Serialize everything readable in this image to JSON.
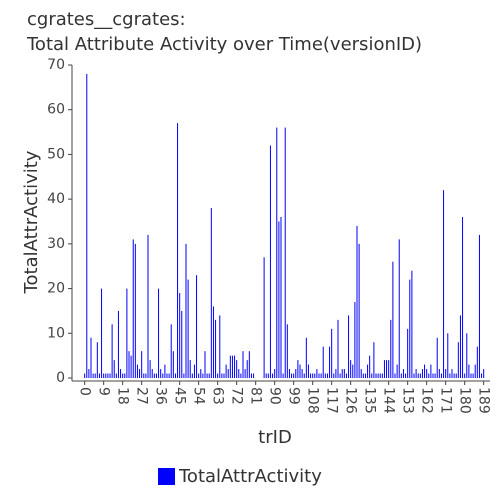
{
  "chart_data": {
    "type": "bar",
    "title_lines": [
      "cgrates__cgrates:",
      "Total Attribute Activity over Time(versionID)"
    ],
    "x_label": "trID",
    "y_label": "TotalAttrActivity",
    "series": [
      {
        "name": "TotalAttrActivity",
        "color": "#0000ff",
        "values": [
          1,
          68,
          2,
          9,
          1,
          1,
          8,
          1,
          20,
          1,
          1,
          1,
          1,
          12,
          4,
          1,
          15,
          2,
          1,
          1,
          20,
          6,
          5,
          31,
          30,
          3,
          2,
          6,
          1,
          1,
          32,
          4,
          2,
          1,
          1,
          20,
          2,
          1,
          3,
          1,
          1,
          12,
          6,
          1,
          57,
          19,
          15,
          1,
          30,
          22,
          4,
          1,
          3,
          23,
          1,
          2,
          1,
          6,
          1,
          1,
          38,
          16,
          13,
          1,
          14,
          1,
          1,
          3,
          2,
          5,
          5,
          5,
          4,
          2,
          1,
          6,
          2,
          4,
          6,
          1,
          1,
          0,
          0,
          0,
          0,
          27,
          1,
          1,
          52,
          1,
          2,
          56,
          35,
          36,
          1,
          56,
          12,
          2,
          1,
          1,
          2,
          4,
          3,
          2,
          1,
          9,
          3,
          1,
          1,
          1,
          2,
          1,
          1,
          7,
          1,
          1,
          7,
          11,
          1,
          2,
          13,
          1,
          2,
          2,
          1,
          14,
          4,
          3,
          17,
          34,
          30,
          2,
          1,
          1,
          3,
          5,
          1,
          8,
          1,
          1,
          1,
          1,
          4,
          4,
          4,
          13,
          26,
          1,
          3,
          31,
          1,
          2,
          1,
          11,
          22,
          24,
          1,
          2,
          1,
          1,
          2,
          3,
          2,
          1,
          3,
          1,
          1,
          9,
          2,
          1,
          42,
          2,
          10,
          1,
          2,
          1,
          1,
          8,
          14,
          36,
          1,
          10,
          3,
          1,
          1,
          3,
          7,
          32,
          1,
          2
        ]
      }
    ],
    "x": [
      0,
      1,
      2,
      3,
      4,
      5,
      6,
      7,
      8,
      9,
      10,
      11,
      12,
      13,
      14,
      15,
      16,
      17,
      18,
      19,
      20,
      21,
      22,
      23,
      24,
      25,
      26,
      27,
      28,
      29,
      30,
      31,
      32,
      33,
      34,
      35,
      36,
      37,
      38,
      39,
      40,
      41,
      42,
      43,
      44,
      45,
      46,
      47,
      48,
      49,
      50,
      51,
      52,
      53,
      54,
      55,
      56,
      57,
      58,
      59,
      60,
      61,
      62,
      63,
      64,
      65,
      66,
      67,
      68,
      69,
      70,
      71,
      72,
      73,
      74,
      75,
      76,
      77,
      78,
      79,
      80,
      81,
      82,
      83,
      84,
      85,
      86,
      87,
      88,
      89,
      90,
      91,
      92,
      93,
      94,
      95,
      96,
      97,
      98,
      99,
      100,
      101,
      102,
      103,
      104,
      105,
      106,
      107,
      108,
      109,
      110,
      111,
      112,
      113,
      114,
      115,
      116,
      117,
      118,
      119,
      120,
      121,
      122,
      123,
      124,
      125,
      126,
      127,
      128,
      129,
      130,
      131,
      132,
      133,
      134,
      135,
      136,
      137,
      138,
      139,
      140,
      141,
      142,
      143,
      144,
      145,
      146,
      147,
      148,
      149,
      150,
      151,
      152,
      153,
      154,
      155,
      156,
      157,
      158,
      159,
      160,
      161,
      162,
      163,
      164,
      165,
      166,
      167,
      168,
      169,
      170,
      171,
      172,
      173,
      174,
      175,
      176,
      177,
      178,
      179,
      180,
      181,
      182,
      183,
      184,
      185,
      186,
      187,
      188,
      189
    ],
    "xlim": [
      -6,
      192
    ],
    "xticks": [
      0,
      9,
      18,
      27,
      36,
      45,
      54,
      63,
      72,
      81,
      90,
      99,
      108,
      117,
      126,
      135,
      144,
      153,
      162,
      171,
      180,
      189
    ],
    "ylim": [
      0,
      70
    ],
    "yticks": [
      0,
      10,
      20,
      30,
      40,
      50,
      60,
      70
    ],
    "grid": false,
    "legend": "bottom"
  }
}
